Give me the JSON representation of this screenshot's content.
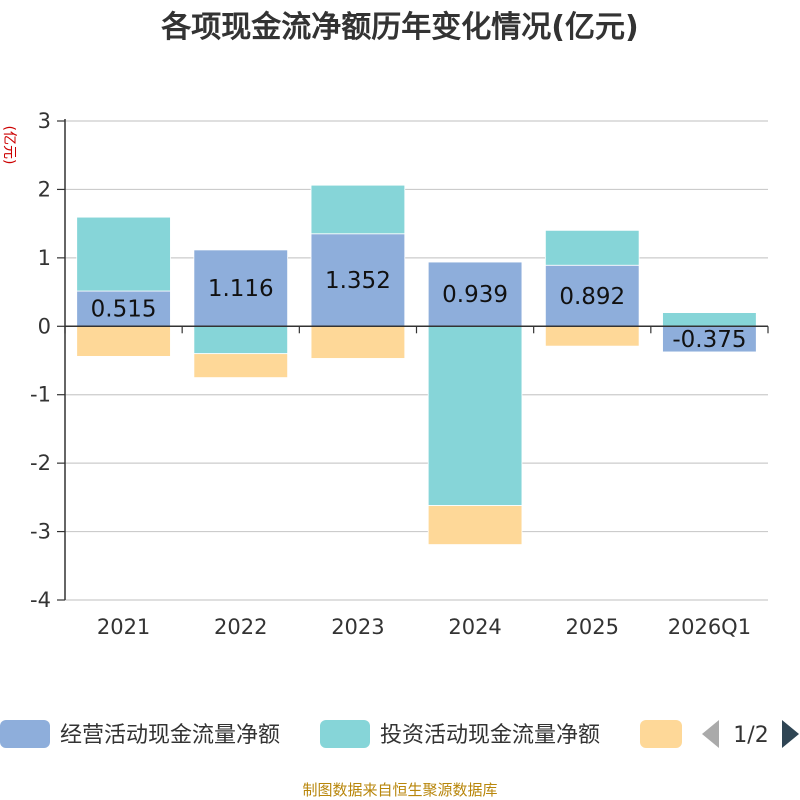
{
  "chart_data": {
    "type": "bar",
    "stacked": true,
    "title": "各项现金流净额历年变化情况(亿元)",
    "ylabel": "(亿元)",
    "categories": [
      "2021",
      "2022",
      "2023",
      "2024",
      "2025",
      "2026Q1"
    ],
    "series": [
      {
        "name": "经营活动现金流量净额",
        "color": "#8eaedb",
        "values": [
          0.515,
          1.116,
          1.352,
          0.939,
          0.892,
          -0.375
        ],
        "labels": [
          "0.515",
          "1.116",
          "1.352",
          "0.939",
          "0.892",
          "-0.375"
        ]
      },
      {
        "name": "投资活动现金流量净额",
        "color": "#86d5d8",
        "values": [
          1.08,
          -0.4,
          0.71,
          -2.62,
          0.51,
          0.2
        ]
      },
      {
        "name": "",
        "color": "#fed898",
        "values": [
          -0.44,
          -0.35,
          -0.47,
          -0.57,
          -0.29,
          0
        ]
      }
    ],
    "ylim": [
      -4,
      3
    ],
    "yticks": [
      3,
      2,
      1,
      0,
      -1,
      -2,
      -3,
      -4
    ],
    "legend": {
      "position": "bottom",
      "page": "1/2"
    },
    "source": "制图数据来自恒生聚源数据库"
  }
}
